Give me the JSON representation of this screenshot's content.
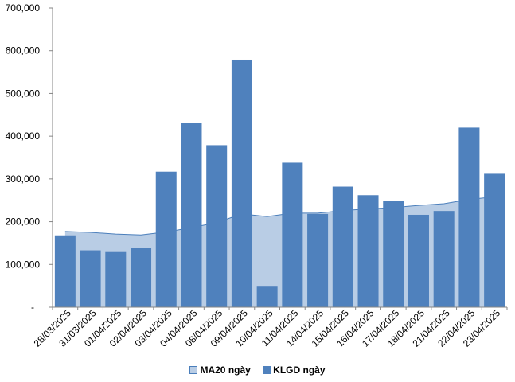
{
  "chart_data": {
    "type": "bar",
    "categories": [
      "28/03/2025",
      "31/03/2025",
      "01/04/2025",
      "02/04/2025",
      "03/04/2025",
      "04/04/2025",
      "08/04/2025",
      "09/04/2025",
      "10/04/2025",
      "11/04/2025",
      "14/04/2025",
      "15/04/2025",
      "16/04/2025",
      "17/04/2025",
      "18/04/2025",
      "21/04/2025",
      "22/04/2025",
      "23/04/2025"
    ],
    "series": [
      {
        "name": "MA20 ngày",
        "kind": "area",
        "color": "#b9cde5",
        "edge_color": "#4a7ebb",
        "values": [
          177000,
          175000,
          171000,
          169000,
          176000,
          186000,
          198000,
          218000,
          212000,
          220000,
          220000,
          226000,
          230000,
          233000,
          238000,
          242000,
          252000,
          258000
        ]
      },
      {
        "name": "KLGD ngày",
        "kind": "bar",
        "color": "#4f81bd",
        "values": [
          168000,
          133000,
          129000,
          138000,
          317000,
          431000,
          379000,
          579000,
          48000,
          338000,
          218000,
          282000,
          262000,
          249000,
          216000,
          225000,
          420000,
          312000
        ]
      }
    ],
    "yticks": [
      "-",
      "100,000",
      "200,000",
      "300,000",
      "400,000",
      "500,000",
      "600,000",
      "700,000"
    ],
    "ylim": [
      0,
      700000
    ],
    "grid": false,
    "legend_position": "bottom"
  }
}
